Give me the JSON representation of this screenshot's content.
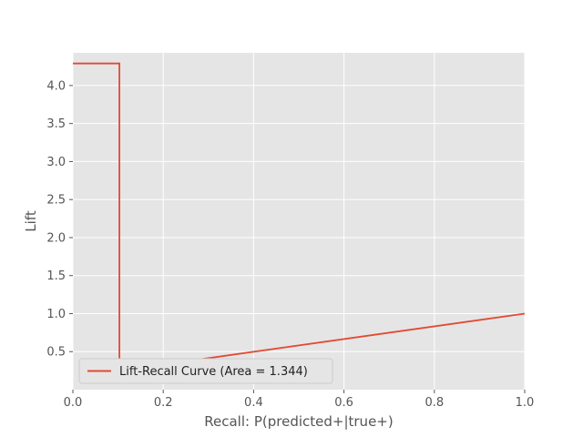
{
  "chart_data": {
    "type": "line",
    "title": "",
    "xlabel": "Recall: P(predicted+|true+)",
    "ylabel": "Lift",
    "xlim": [
      0.0,
      1.0
    ],
    "ylim": [
      0.0,
      4.43
    ],
    "x_ticks": [
      0.0,
      0.2,
      0.4,
      0.6,
      0.8,
      1.0
    ],
    "x_tick_labels": [
      "0.0",
      "0.2",
      "0.4",
      "0.6",
      "0.8",
      "1.0"
    ],
    "y_ticks": [
      0.5,
      1.0,
      1.5,
      2.0,
      2.5,
      3.0,
      3.5,
      4.0
    ],
    "y_tick_labels": [
      "0.5",
      "1.0",
      "1.5",
      "2.0",
      "2.5",
      "3.0",
      "3.5",
      "4.0"
    ],
    "grid": true,
    "legend_position": "lower-left",
    "series": [
      {
        "name": "Lift-Recall Curve  (Area = 1.344)",
        "color": "#e24a33",
        "x": [
          0.0,
          0.103,
          0.103,
          1.0
        ],
        "y": [
          4.29,
          4.29,
          0.25,
          1.0
        ]
      }
    ]
  }
}
